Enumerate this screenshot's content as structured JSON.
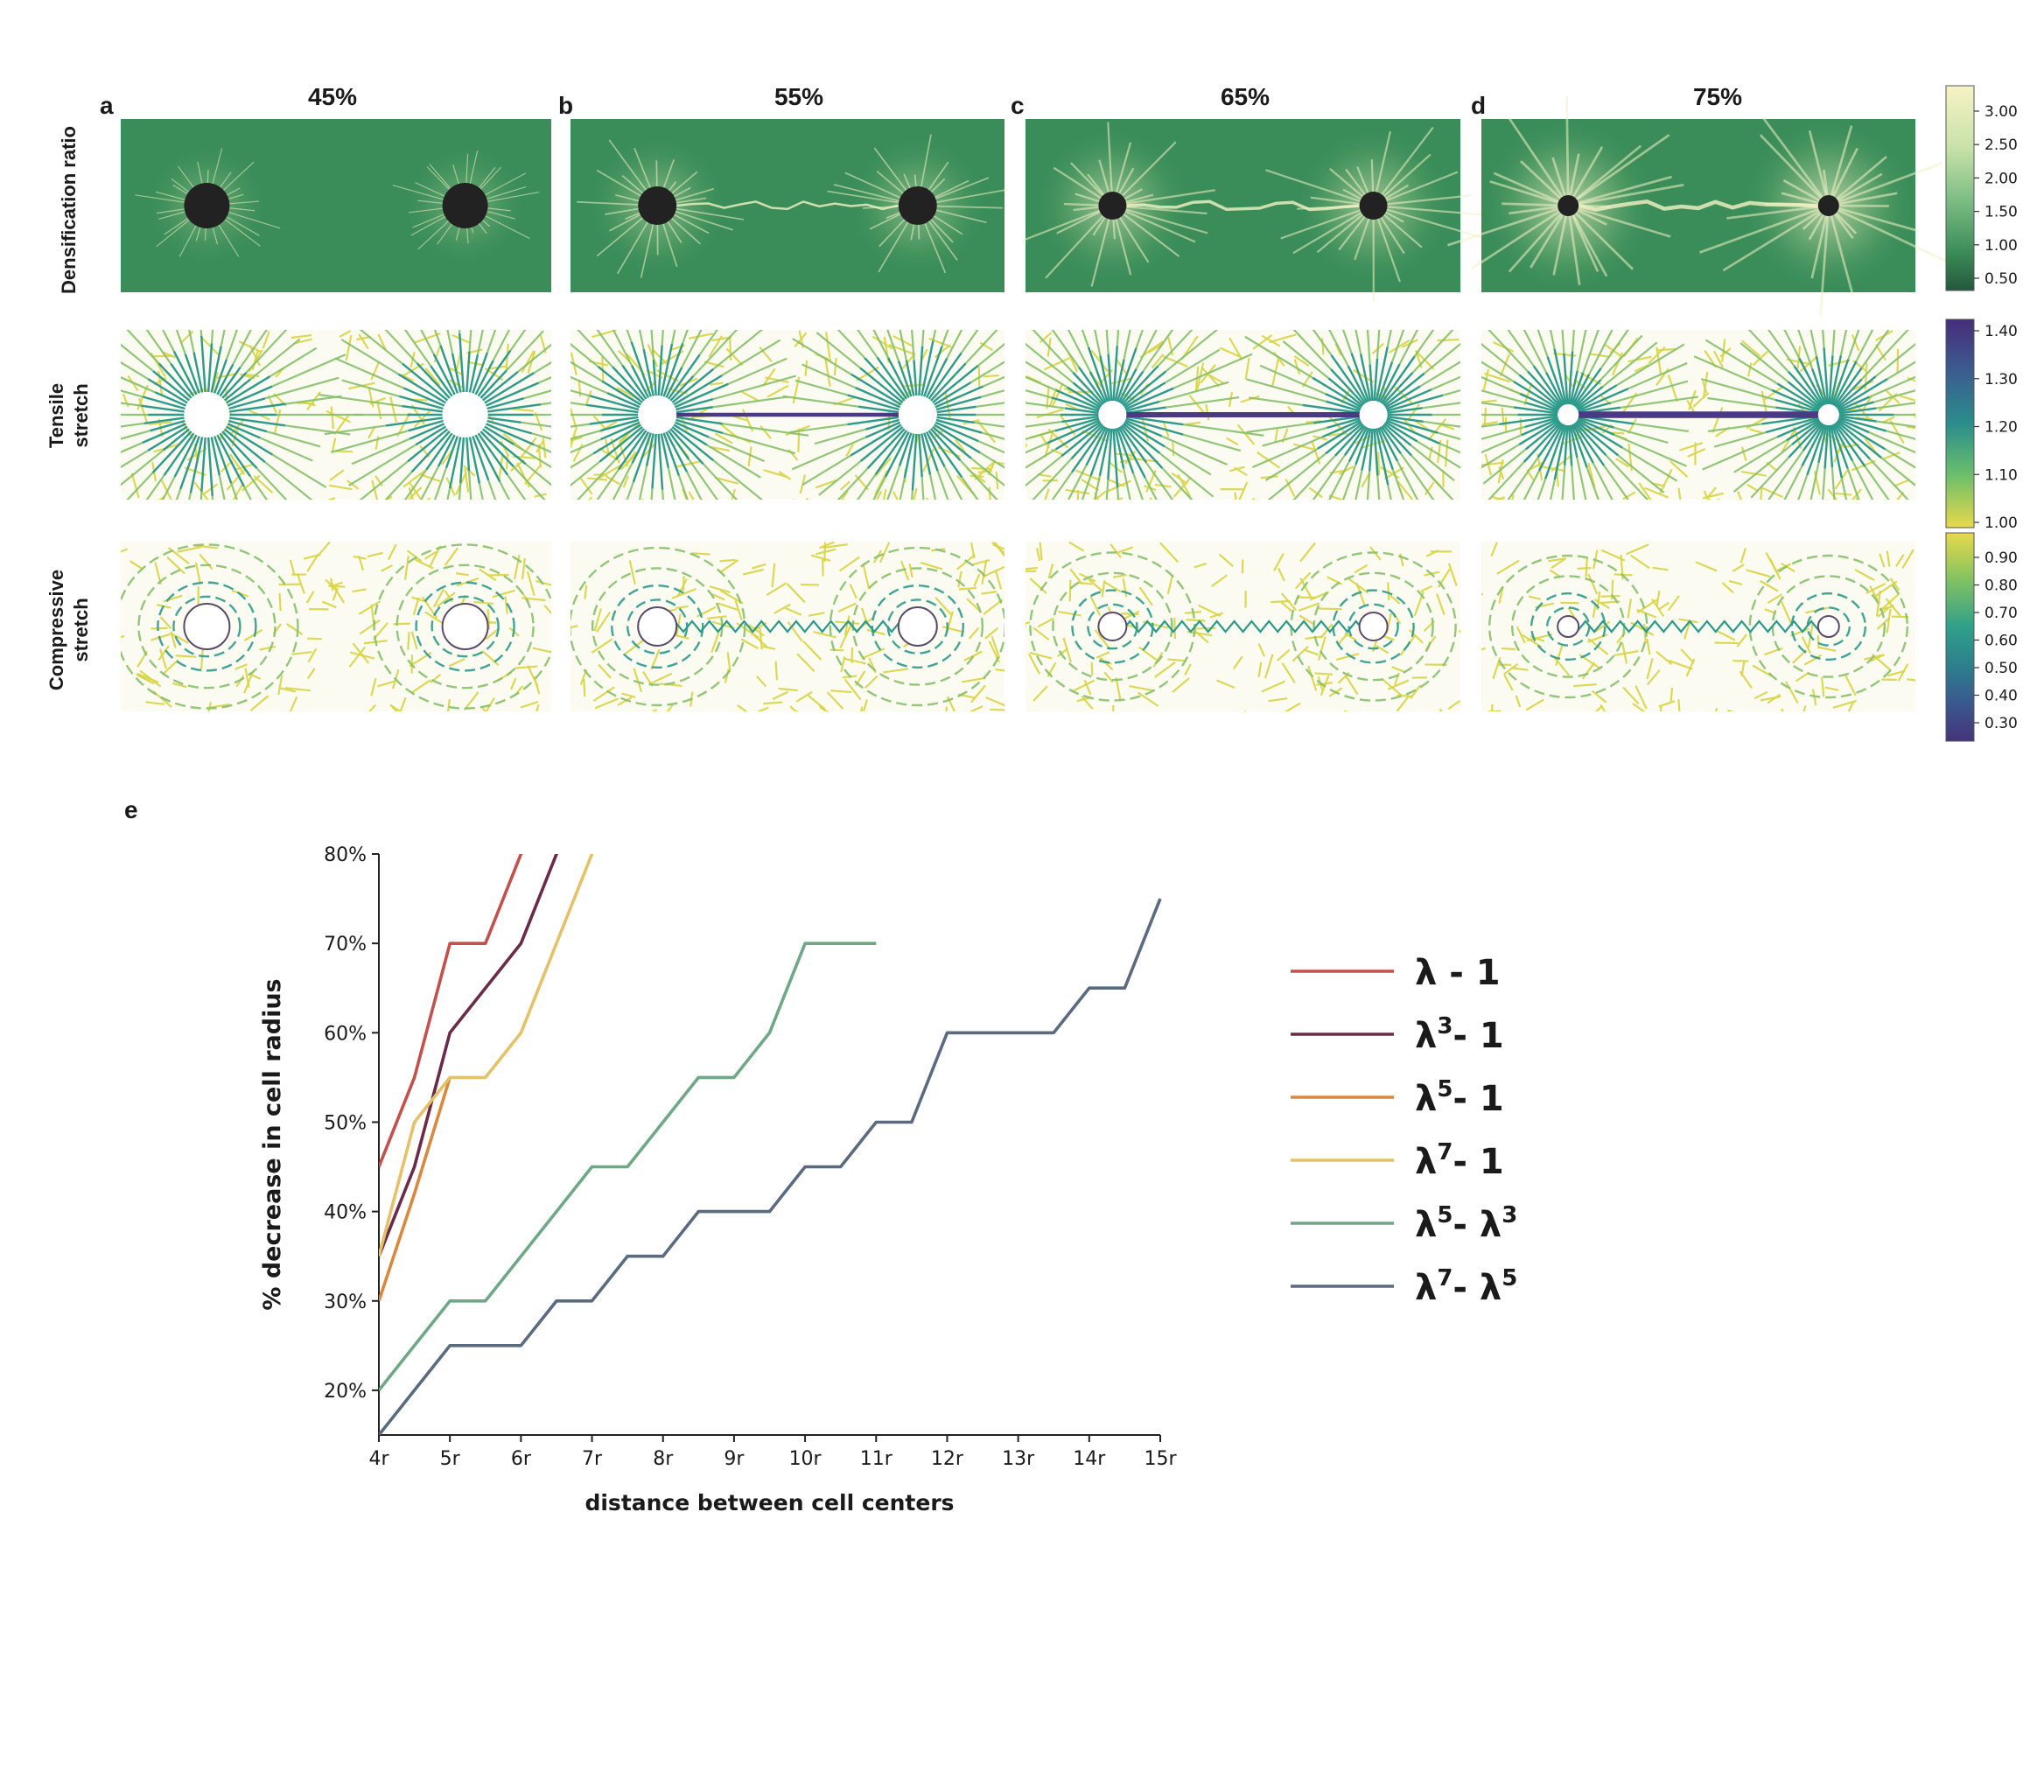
{
  "figure": {
    "panel_letters": [
      "a",
      "b",
      "c",
      "d"
    ],
    "panel_e_letter": "e",
    "columns": [
      {
        "letter": "a",
        "title": "45%"
      },
      {
        "letter": "b",
        "title": "55%"
      },
      {
        "letter": "c",
        "title": "65%"
      },
      {
        "letter": "d",
        "title": "75%"
      }
    ],
    "rows": [
      {
        "label": "Densification ratio"
      },
      {
        "label_line1": "Tensile",
        "label_line2": "stretch"
      },
      {
        "label_line1": "Compressive",
        "label_line2": "stretch"
      }
    ],
    "colorbars": {
      "densification": {
        "ticks": [
          "3.00",
          "2.50",
          "2.00",
          "1.50",
          "1.00",
          "0.50"
        ],
        "colors": [
          "#f7f3c6",
          "#c9e2a8",
          "#7fbf86",
          "#3e8f5a",
          "#24583c"
        ]
      },
      "tensile": {
        "ticks": [
          "1.40",
          "1.30",
          "1.20",
          "1.10",
          "1.00"
        ],
        "colors": [
          "#472c7a",
          "#3b5d8f",
          "#2a8d8c",
          "#6cbf6a",
          "#e8d94a"
        ]
      },
      "compressive": {
        "ticks": [
          "0.90",
          "0.80",
          "0.70",
          "0.60",
          "0.50",
          "0.40",
          "0.30"
        ],
        "colors": [
          "#e8d94a",
          "#8dc55d",
          "#2fa08a",
          "#2e7d8e",
          "#39588e",
          "#46337a"
        ]
      }
    },
    "map_colors": {
      "green_bg": "#3a8d59",
      "highlight": "#f2f2c4",
      "yellow": "#d9d545",
      "teal": "#2e9a8b",
      "purple": "#4a3a84",
      "cell": "#222222"
    }
  },
  "chart_data": {
    "type": "line",
    "ylabel": "% decrease in cell radius",
    "xlabel": "distance between cell centers",
    "x_ticks": [
      "4r",
      "5r",
      "6r",
      "7r",
      "8r",
      "9r",
      "10r",
      "11r",
      "12r",
      "13r",
      "14r",
      "15r"
    ],
    "y_ticks": [
      "20%",
      "30%",
      "40%",
      "50%",
      "60%",
      "70%",
      "80%"
    ],
    "xlim": [
      4,
      15
    ],
    "ylim": [
      15,
      80
    ],
    "series": [
      {
        "name": "λ - 1",
        "color": "#c4504c",
        "x": [
          4,
          4.5,
          5,
          5.5,
          6,
          6.1
        ],
        "y": [
          45,
          55,
          70,
          70,
          80,
          81
        ]
      },
      {
        "name": "λ3 - 1",
        "color": "#6b2b48",
        "x": [
          4,
          4.5,
          5,
          5.5,
          6,
          6.5,
          6.6
        ],
        "y": [
          35,
          45,
          60,
          65,
          70,
          80,
          81
        ]
      },
      {
        "name": "λ5 - 1",
        "color": "#d9883f",
        "x": [
          4,
          4.5,
          5
        ],
        "y": [
          30,
          42,
          55
        ]
      },
      {
        "name": "λ7 - 1",
        "color": "#e5c16a",
        "x": [
          4,
          4.5,
          5,
          5.5,
          6,
          7,
          7.1
        ],
        "y": [
          35,
          50,
          55,
          55,
          60,
          80,
          81
        ]
      },
      {
        "name": "λ5 - λ3",
        "color": "#6fa886",
        "x": [
          4,
          4.5,
          5,
          5.5,
          6,
          6.5,
          7,
          7.5,
          8,
          8.5,
          9,
          9.5,
          10,
          10.5,
          11
        ],
        "y": [
          20,
          25,
          30,
          30,
          35,
          40,
          45,
          45,
          50,
          55,
          55,
          60,
          70,
          70,
          70
        ]
      },
      {
        "name": "λ7 - λ5",
        "color": "#5a6b80",
        "x": [
          4,
          4.5,
          5,
          5.5,
          6,
          6.5,
          7,
          7.5,
          8,
          8.5,
          9,
          9.5,
          10,
          10.5,
          11,
          11.5,
          12,
          12.5,
          13,
          13.5,
          14,
          14.5,
          15
        ],
        "y": [
          15,
          20,
          25,
          25,
          25,
          30,
          30,
          35,
          35,
          40,
          40,
          40,
          45,
          45,
          50,
          50,
          60,
          60,
          60,
          60,
          65,
          65,
          75
        ]
      }
    ],
    "legend": [
      {
        "base": "λ",
        "sup": "",
        "rest": " - 1",
        "sup2": ""
      },
      {
        "base": "λ",
        "sup": "3",
        "rest": "- 1",
        "sup2": ""
      },
      {
        "base": "λ",
        "sup": "5",
        "rest": "- 1",
        "sup2": ""
      },
      {
        "base": "λ",
        "sup": "7",
        "rest": "- 1",
        "sup2": ""
      },
      {
        "base": "λ",
        "sup": "5",
        "rest": "- λ",
        "sup2": "3"
      },
      {
        "base": "λ",
        "sup": "7",
        "rest": "- λ",
        "sup2": "5"
      }
    ]
  }
}
